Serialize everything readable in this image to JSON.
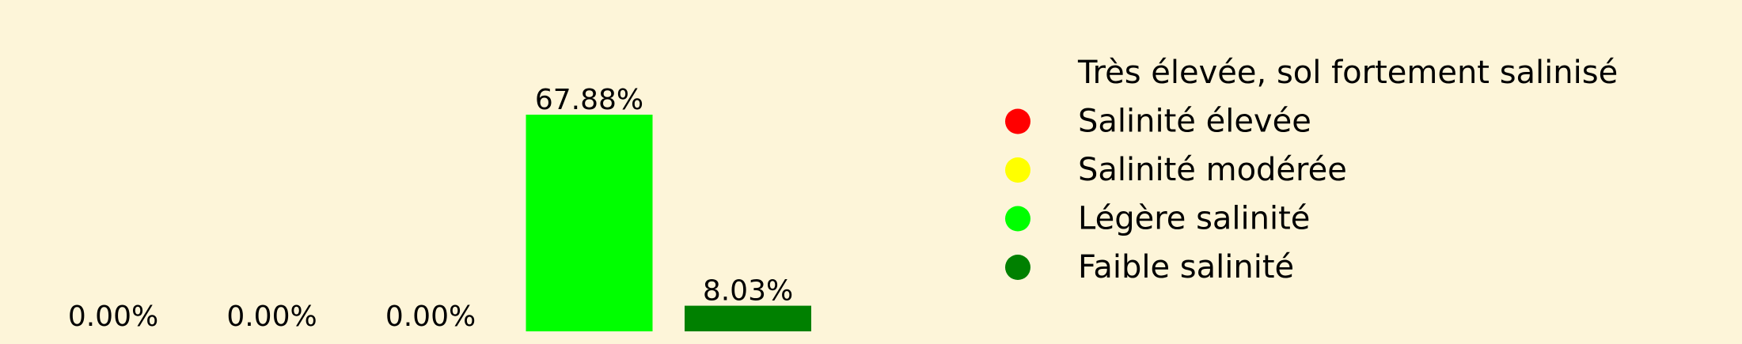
{
  "chart_data": {
    "type": "bar",
    "categories": [
      "Très élevée, sol fortement salinisé",
      "Salinité élevée",
      "Salinité modérée",
      "Légère salinité",
      "Faible salinité"
    ],
    "values": [
      0.0,
      0.0,
      0.0,
      67.88,
      8.03
    ],
    "data_labels": [
      "0.00%",
      "0.00%",
      "0.00%",
      "67.88%",
      "8.03%"
    ],
    "colors": [
      "#fdf5d9",
      "#ff0000",
      "#ffff00",
      "#00ff00",
      "#008000"
    ],
    "title": "",
    "xlabel": "",
    "ylabel": "",
    "ylim": [
      0,
      67.88
    ],
    "grid": false,
    "legend_placement": "right",
    "legend": [
      {
        "label": "Très élevée, sol fortement salinisé",
        "color": "#fdf5d9"
      },
      {
        "label": "Salinité élevée",
        "color": "#ff0000"
      },
      {
        "label": "Salinité modérée",
        "color": "#ffff00"
      },
      {
        "label": "Légère salinité",
        "color": "#00ff00"
      },
      {
        "label": "Faible salinité",
        "color": "#008000"
      }
    ]
  }
}
